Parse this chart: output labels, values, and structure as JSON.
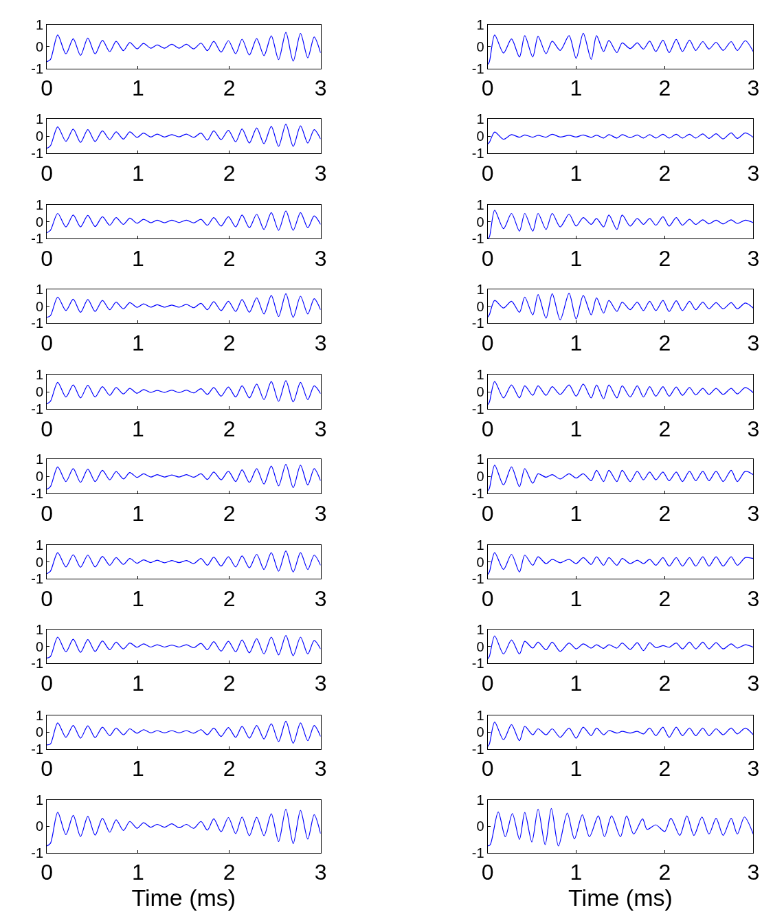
{
  "chart_data": [
    {
      "type": "line",
      "color": "#0000ff",
      "xlim": [
        0,
        3
      ],
      "ylim": [
        -1,
        1
      ],
      "xticks": [
        0,
        1,
        2,
        3
      ],
      "yticks": [
        -1,
        0,
        1
      ],
      "x": [
        0,
        0.04,
        0.12,
        0.21,
        0.29,
        0.37,
        0.45,
        0.53,
        0.61,
        0.69,
        0.76,
        0.84,
        0.91,
        0.99,
        1.06,
        1.14,
        1.21,
        1.29,
        1.37,
        1.45,
        1.53,
        1.61,
        1.69,
        1.76,
        1.83,
        1.91,
        1.99,
        2.07,
        2.14,
        2.22,
        2.3,
        2.38,
        2.46,
        2.54,
        2.62,
        2.7,
        2.78,
        2.86,
        2.93,
        3.0
      ],
      "values": [
        -0.7,
        -0.6,
        0.52,
        -0.34,
        0.35,
        -0.41,
        0.38,
        -0.34,
        0.28,
        -0.24,
        0.23,
        -0.19,
        0.18,
        -0.11,
        0.14,
        -0.08,
        0.07,
        -0.08,
        0.1,
        -0.08,
        0.1,
        -0.11,
        0.15,
        -0.19,
        0.23,
        -0.26,
        0.26,
        -0.33,
        0.33,
        -0.39,
        0.36,
        -0.42,
        0.48,
        -0.6,
        0.64,
        -0.67,
        0.59,
        -0.52,
        0.43,
        -0.29
      ]
    },
    {
      "type": "line",
      "color": "#0000ff",
      "xlim": [
        0,
        3
      ],
      "ylim": [
        -1,
        1
      ],
      "xticks": [
        0,
        1,
        2,
        3
      ],
      "yticks": [
        -1,
        0,
        1
      ],
      "x": [
        0,
        0.02,
        0.08,
        0.18,
        0.27,
        0.36,
        0.42,
        0.51,
        0.57,
        0.66,
        0.73,
        0.82,
        0.92,
        1.0,
        1.08,
        1.17,
        1.23,
        1.31,
        1.37,
        1.46,
        1.52,
        1.61,
        1.69,
        1.76,
        1.83,
        1.9,
        1.98,
        2.05,
        2.13,
        2.2,
        2.28,
        2.35,
        2.43,
        2.5,
        2.58,
        2.66,
        2.75,
        2.82,
        2.91,
        3.0
      ],
      "values": [
        -0.82,
        -0.7,
        0.52,
        -0.3,
        0.34,
        -0.48,
        0.49,
        -0.48,
        0.46,
        -0.33,
        0.24,
        -0.18,
        0.49,
        -0.54,
        0.6,
        -0.59,
        0.49,
        -0.23,
        0.27,
        -0.28,
        0.16,
        -0.1,
        0.16,
        -0.12,
        0.24,
        -0.23,
        0.29,
        -0.28,
        0.32,
        -0.23,
        0.29,
        -0.18,
        0.22,
        -0.12,
        0.19,
        -0.18,
        0.22,
        -0.18,
        0.26,
        -0.24
      ]
    },
    {
      "type": "line",
      "color": "#0000ff",
      "xlim": [
        0,
        3
      ],
      "ylim": [
        -1,
        1
      ],
      "xticks": [
        0,
        1,
        2,
        3
      ],
      "yticks": [
        -1,
        0,
        1
      ],
      "x": [
        0,
        0.04,
        0.12,
        0.21,
        0.29,
        0.37,
        0.45,
        0.53,
        0.61,
        0.69,
        0.76,
        0.84,
        0.91,
        0.99,
        1.06,
        1.14,
        1.21,
        1.29,
        1.37,
        1.45,
        1.53,
        1.61,
        1.69,
        1.76,
        1.83,
        1.91,
        1.99,
        2.07,
        2.14,
        2.22,
        2.3,
        2.38,
        2.46,
        2.54,
        2.62,
        2.7,
        2.78,
        2.86,
        2.93,
        3.0
      ],
      "values": [
        -0.7,
        -0.55,
        0.55,
        -0.29,
        0.42,
        -0.35,
        0.39,
        -0.3,
        0.32,
        -0.19,
        0.26,
        -0.16,
        0.26,
        -0.06,
        0.19,
        -0.04,
        0.13,
        -0.04,
        0.1,
        -0.03,
        0.13,
        -0.06,
        0.19,
        -0.22,
        0.32,
        -0.19,
        0.35,
        -0.32,
        0.43,
        -0.39,
        0.49,
        -0.43,
        0.58,
        -0.58,
        0.71,
        -0.58,
        0.61,
        -0.39,
        0.39,
        -0.15
      ]
    },
    {
      "type": "line",
      "color": "#0000ff",
      "xlim": [
        0,
        3
      ],
      "ylim": [
        -1,
        1
      ],
      "xticks": [
        0,
        1,
        2,
        3
      ],
      "yticks": [
        -1,
        0,
        1
      ],
      "x": [
        0,
        0.02,
        0.08,
        0.18,
        0.27,
        0.36,
        0.42,
        0.51,
        0.57,
        0.66,
        0.73,
        0.82,
        0.92,
        1.0,
        1.08,
        1.17,
        1.23,
        1.31,
        1.37,
        1.46,
        1.52,
        1.61,
        1.69,
        1.76,
        1.83,
        1.9,
        1.98,
        2.05,
        2.13,
        2.2,
        2.28,
        2.35,
        2.43,
        2.5,
        2.58,
        2.66,
        2.75,
        2.82,
        2.91,
        3.0
      ],
      "values": [
        -0.45,
        -0.35,
        0.25,
        -0.17,
        0.1,
        -0.05,
        0.08,
        -0.05,
        0.06,
        -0.05,
        0.12,
        -0.04,
        0.06,
        -0.04,
        0.08,
        -0.06,
        0.07,
        -0.1,
        0.1,
        -0.1,
        0.1,
        -0.08,
        0.08,
        -0.1,
        0.1,
        -0.1,
        0.12,
        -0.1,
        0.12,
        -0.1,
        0.12,
        -0.1,
        0.14,
        -0.12,
        0.15,
        -0.15,
        0.2,
        -0.12,
        0.2,
        -0.06
      ]
    },
    {
      "type": "line",
      "color": "#0000ff",
      "xlim": [
        0,
        3
      ],
      "ylim": [
        -1,
        1
      ],
      "xticks": [
        0,
        1,
        2,
        3
      ],
      "yticks": [
        -1,
        0,
        1
      ],
      "x": [
        0,
        0.04,
        0.12,
        0.21,
        0.29,
        0.37,
        0.45,
        0.53,
        0.61,
        0.69,
        0.76,
        0.84,
        0.91,
        0.99,
        1.06,
        1.14,
        1.21,
        1.29,
        1.37,
        1.45,
        1.53,
        1.61,
        1.69,
        1.76,
        1.83,
        1.91,
        1.99,
        2.07,
        2.14,
        2.22,
        2.3,
        2.38,
        2.46,
        2.54,
        2.62,
        2.7,
        2.78,
        2.86,
        2.93,
        3.0
      ],
      "values": [
        -0.65,
        -0.5,
        0.5,
        -0.3,
        0.4,
        -0.3,
        0.38,
        -0.28,
        0.3,
        -0.2,
        0.25,
        -0.15,
        0.22,
        -0.08,
        0.15,
        -0.05,
        0.1,
        -0.05,
        0.1,
        -0.04,
        0.1,
        -0.06,
        0.15,
        -0.2,
        0.25,
        -0.25,
        0.3,
        -0.3,
        0.4,
        -0.35,
        0.45,
        -0.45,
        0.55,
        -0.5,
        0.65,
        -0.5,
        0.55,
        -0.35,
        0.35,
        -0.15
      ]
    },
    {
      "type": "line",
      "color": "#0000ff",
      "xlim": [
        0,
        3
      ],
      "ylim": [
        -1,
        1
      ],
      "xticks": [
        0,
        1,
        2,
        3
      ],
      "yticks": [
        -1,
        0,
        1
      ],
      "x": [
        0,
        0.02,
        0.08,
        0.18,
        0.27,
        0.36,
        0.42,
        0.51,
        0.57,
        0.66,
        0.73,
        0.82,
        0.92,
        1.0,
        1.08,
        1.17,
        1.23,
        1.31,
        1.37,
        1.46,
        1.52,
        1.61,
        1.69,
        1.76,
        1.83,
        1.9,
        1.98,
        2.05,
        2.13,
        2.2,
        2.28,
        2.35,
        2.43,
        2.5,
        2.58,
        2.66,
        2.75,
        2.82,
        2.91,
        3.0
      ],
      "values": [
        -1.0,
        -0.9,
        0.69,
        -0.4,
        0.5,
        -0.55,
        0.5,
        -0.55,
        0.5,
        -0.45,
        0.5,
        -0.3,
        0.45,
        -0.25,
        0.25,
        -0.15,
        0.2,
        -0.3,
        0.4,
        -0.45,
        0.4,
        -0.25,
        0.2,
        -0.15,
        0.2,
        -0.2,
        0.3,
        -0.25,
        0.25,
        -0.2,
        0.15,
        -0.15,
        0.12,
        -0.12,
        0.1,
        -0.12,
        0.12,
        -0.1,
        0.1,
        -0.05
      ]
    },
    {
      "type": "line",
      "color": "#0000ff",
      "xlim": [
        0,
        3
      ],
      "ylim": [
        -1,
        1
      ],
      "xticks": [
        0,
        1,
        2,
        3
      ],
      "yticks": [
        -1,
        0,
        1
      ],
      "x": [
        0,
        0.04,
        0.12,
        0.21,
        0.29,
        0.37,
        0.45,
        0.53,
        0.61,
        0.69,
        0.76,
        0.84,
        0.91,
        0.99,
        1.06,
        1.14,
        1.21,
        1.29,
        1.37,
        1.45,
        1.53,
        1.61,
        1.69,
        1.76,
        1.83,
        1.91,
        1.99,
        2.07,
        2.14,
        2.22,
        2.3,
        2.38,
        2.46,
        2.54,
        2.62,
        2.7,
        2.78,
        2.86,
        2.93,
        3.0
      ],
      "values": [
        -0.65,
        -0.55,
        0.55,
        -0.25,
        0.42,
        -0.35,
        0.4,
        -0.3,
        0.35,
        -0.2,
        0.25,
        -0.15,
        0.22,
        -0.06,
        0.15,
        -0.05,
        0.1,
        -0.05,
        0.08,
        -0.05,
        0.12,
        -0.08,
        0.18,
        -0.2,
        0.28,
        -0.25,
        0.3,
        -0.3,
        0.4,
        -0.35,
        0.5,
        -0.45,
        0.65,
        -0.6,
        0.75,
        -0.65,
        0.6,
        -0.45,
        0.45,
        -0.2
      ]
    },
    {
      "type": "line",
      "color": "#0000ff",
      "xlim": [
        0,
        3
      ],
      "ylim": [
        -1,
        1
      ],
      "xticks": [
        0,
        1,
        2,
        3
      ],
      "yticks": [
        -1,
        0,
        1
      ],
      "x": [
        0,
        0.02,
        0.08,
        0.18,
        0.27,
        0.36,
        0.42,
        0.51,
        0.57,
        0.66,
        0.73,
        0.82,
        0.92,
        1.0,
        1.08,
        1.17,
        1.23,
        1.31,
        1.37,
        1.46,
        1.52,
        1.61,
        1.69,
        1.76,
        1.83,
        1.9,
        1.98,
        2.05,
        2.13,
        2.2,
        2.28,
        2.35,
        2.43,
        2.5,
        2.58,
        2.66,
        2.75,
        2.82,
        2.91,
        3.0
      ],
      "values": [
        -0.65,
        -0.5,
        0.35,
        -0.1,
        0.3,
        -0.35,
        0.55,
        -0.5,
        0.7,
        -0.7,
        0.75,
        -0.8,
        0.78,
        -0.75,
        0.65,
        -0.5,
        0.5,
        -0.4,
        0.35,
        -0.3,
        0.25,
        -0.2,
        0.25,
        -0.25,
        0.3,
        -0.25,
        0.35,
        -0.3,
        0.33,
        -0.25,
        0.3,
        -0.2,
        0.25,
        -0.15,
        0.22,
        -0.15,
        0.22,
        -0.15,
        0.2,
        -0.1
      ]
    },
    {
      "type": "line",
      "color": "#0000ff",
      "xlim": [
        0,
        3
      ],
      "ylim": [
        -1,
        1
      ],
      "xticks": [
        0,
        1,
        2,
        3
      ],
      "yticks": [
        -1,
        0,
        1
      ],
      "x": [
        0,
        0.04,
        0.12,
        0.21,
        0.29,
        0.37,
        0.45,
        0.53,
        0.61,
        0.69,
        0.76,
        0.84,
        0.91,
        0.99,
        1.06,
        1.14,
        1.21,
        1.29,
        1.37,
        1.45,
        1.53,
        1.61,
        1.69,
        1.76,
        1.83,
        1.91,
        1.99,
        2.07,
        2.14,
        2.22,
        2.3,
        2.38,
        2.46,
        2.54,
        2.62,
        2.7,
        2.78,
        2.86,
        2.93,
        3.0
      ],
      "values": [
        -0.7,
        -0.55,
        0.55,
        -0.3,
        0.4,
        -0.35,
        0.38,
        -0.3,
        0.3,
        -0.2,
        0.25,
        -0.12,
        0.2,
        -0.08,
        0.13,
        -0.03,
        0.08,
        -0.03,
        0.1,
        -0.04,
        0.1,
        -0.06,
        0.18,
        -0.15,
        0.25,
        -0.25,
        0.28,
        -0.3,
        0.35,
        -0.35,
        0.45,
        -0.45,
        0.6,
        -0.55,
        0.65,
        -0.58,
        0.55,
        -0.45,
        0.35,
        -0.1
      ]
    },
    {
      "type": "line",
      "color": "#0000ff",
      "xlim": [
        0,
        3
      ],
      "ylim": [
        -1,
        1
      ],
      "xticks": [
        0,
        1,
        2,
        3
      ],
      "yticks": [
        -1,
        0,
        1
      ],
      "x": [
        0,
        0.02,
        0.08,
        0.18,
        0.27,
        0.36,
        0.42,
        0.51,
        0.57,
        0.66,
        0.73,
        0.82,
        0.92,
        1.0,
        1.08,
        1.17,
        1.23,
        1.31,
        1.37,
        1.46,
        1.52,
        1.61,
        1.69,
        1.76,
        1.83,
        1.9,
        1.98,
        2.05,
        2.13,
        2.2,
        2.28,
        2.35,
        2.43,
        2.5,
        2.58,
        2.66,
        2.75,
        2.82,
        2.91,
        3.0
      ],
      "values": [
        -0.75,
        -0.6,
        0.6,
        -0.35,
        0.4,
        -0.35,
        0.35,
        -0.2,
        0.35,
        -0.2,
        0.3,
        -0.15,
        0.4,
        -0.25,
        0.45,
        -0.35,
        0.4,
        -0.4,
        0.4,
        -0.35,
        0.35,
        -0.3,
        0.35,
        -0.3,
        0.3,
        -0.25,
        0.3,
        -0.25,
        0.28,
        -0.2,
        0.25,
        -0.18,
        0.2,
        -0.15,
        0.2,
        -0.15,
        0.2,
        -0.12,
        0.25,
        -0.05
      ]
    },
    {
      "type": "line",
      "color": "#0000ff",
      "xlim": [
        0,
        3
      ],
      "ylim": [
        -1,
        1
      ],
      "xticks": [
        0,
        1,
        2,
        3
      ],
      "yticks": [
        -1,
        0,
        1
      ],
      "x": [
        0,
        0.04,
        0.12,
        0.21,
        0.29,
        0.37,
        0.45,
        0.53,
        0.61,
        0.69,
        0.76,
        0.84,
        0.91,
        0.99,
        1.06,
        1.14,
        1.21,
        1.29,
        1.37,
        1.45,
        1.53,
        1.61,
        1.69,
        1.76,
        1.83,
        1.91,
        1.99,
        2.07,
        2.14,
        2.22,
        2.3,
        2.38,
        2.46,
        2.54,
        2.62,
        2.7,
        2.78,
        2.86,
        2.93,
        3.0
      ],
      "values": [
        -0.75,
        -0.6,
        0.55,
        -0.3,
        0.45,
        -0.35,
        0.42,
        -0.3,
        0.35,
        -0.2,
        0.28,
        -0.15,
        0.22,
        -0.06,
        0.15,
        -0.04,
        0.1,
        -0.04,
        0.08,
        -0.04,
        0.1,
        -0.05,
        0.15,
        -0.18,
        0.25,
        -0.2,
        0.3,
        -0.3,
        0.38,
        -0.35,
        0.45,
        -0.45,
        0.6,
        -0.55,
        0.7,
        -0.65,
        0.65,
        -0.5,
        0.45,
        -0.25
      ]
    },
    {
      "type": "line",
      "color": "#0000ff",
      "xlim": [
        0,
        3
      ],
      "ylim": [
        -1,
        1
      ],
      "xticks": [
        0,
        1,
        2,
        3
      ],
      "yticks": [
        -1,
        0,
        1
      ],
      "x": [
        0,
        0.02,
        0.08,
        0.18,
        0.27,
        0.36,
        0.42,
        0.51,
        0.57,
        0.66,
        0.73,
        0.82,
        0.92,
        1.0,
        1.08,
        1.17,
        1.23,
        1.31,
        1.37,
        1.46,
        1.52,
        1.61,
        1.69,
        1.76,
        1.83,
        1.9,
        1.98,
        2.05,
        2.13,
        2.2,
        2.28,
        2.35,
        2.43,
        2.5,
        2.58,
        2.66,
        2.75,
        2.82,
        2.91,
        3.0
      ],
      "values": [
        -0.85,
        -0.7,
        0.65,
        -0.5,
        0.55,
        -0.6,
        0.45,
        -0.4,
        0.15,
        -0.05,
        0.1,
        -0.15,
        0.15,
        -0.1,
        0.15,
        -0.25,
        0.35,
        -0.3,
        0.35,
        -0.3,
        0.35,
        -0.3,
        0.3,
        -0.2,
        0.25,
        -0.2,
        0.25,
        -0.25,
        0.25,
        -0.3,
        0.3,
        -0.25,
        0.3,
        -0.25,
        0.3,
        -0.3,
        0.35,
        -0.3,
        0.3,
        0.1
      ]
    },
    {
      "type": "line",
      "color": "#0000ff",
      "xlim": [
        0,
        3
      ],
      "ylim": [
        -1,
        1
      ],
      "xticks": [
        0,
        1,
        2,
        3
      ],
      "yticks": [
        -1,
        0,
        1
      ],
      "x": [
        0,
        0.04,
        0.12,
        0.21,
        0.29,
        0.37,
        0.45,
        0.53,
        0.61,
        0.69,
        0.76,
        0.84,
        0.91,
        0.99,
        1.06,
        1.14,
        1.21,
        1.29,
        1.37,
        1.45,
        1.53,
        1.61,
        1.69,
        1.76,
        1.83,
        1.91,
        1.99,
        2.07,
        2.14,
        2.22,
        2.3,
        2.38,
        2.46,
        2.54,
        2.62,
        2.7,
        2.78,
        2.86,
        2.93,
        3.0
      ],
      "values": [
        -0.7,
        -0.55,
        0.55,
        -0.3,
        0.42,
        -0.32,
        0.4,
        -0.3,
        0.32,
        -0.2,
        0.25,
        -0.15,
        0.2,
        -0.08,
        0.12,
        -0.04,
        0.1,
        -0.05,
        0.08,
        -0.04,
        0.08,
        -0.1,
        0.2,
        -0.2,
        0.28,
        -0.25,
        0.3,
        -0.3,
        0.35,
        -0.35,
        0.45,
        -0.45,
        0.55,
        -0.55,
        0.65,
        -0.6,
        0.55,
        -0.45,
        0.4,
        -0.2
      ]
    },
    {
      "type": "line",
      "color": "#0000ff",
      "xlim": [
        0,
        3
      ],
      "ylim": [
        -1,
        1
      ],
      "xticks": [
        0,
        1,
        2,
        3
      ],
      "yticks": [
        -1,
        0,
        1
      ],
      "x": [
        0,
        0.02,
        0.08,
        0.18,
        0.27,
        0.36,
        0.42,
        0.51,
        0.57,
        0.66,
        0.73,
        0.82,
        0.92,
        1.0,
        1.08,
        1.17,
        1.23,
        1.31,
        1.37,
        1.46,
        1.52,
        1.61,
        1.69,
        1.76,
        1.83,
        1.9,
        1.98,
        2.05,
        2.13,
        2.2,
        2.28,
        2.35,
        2.43,
        2.5,
        2.58,
        2.66,
        2.75,
        2.82,
        2.91,
        3.0
      ],
      "values": [
        -0.75,
        -0.6,
        0.55,
        -0.45,
        0.45,
        -0.6,
        0.4,
        -0.2,
        0.3,
        -0.1,
        0.15,
        -0.05,
        0.15,
        -0.1,
        0.25,
        -0.15,
        0.3,
        -0.2,
        0.25,
        -0.2,
        0.2,
        -0.1,
        0.1,
        -0.1,
        0.15,
        -0.2,
        0.25,
        -0.25,
        0.25,
        -0.25,
        0.25,
        -0.25,
        0.3,
        -0.25,
        0.3,
        -0.25,
        0.3,
        -0.2,
        0.25,
        0.2
      ]
    },
    {
      "type": "line",
      "color": "#0000ff",
      "xlim": [
        0,
        3
      ],
      "ylim": [
        -1,
        1
      ],
      "xticks": [
        0,
        1,
        2,
        3
      ],
      "yticks": [
        -1,
        0,
        1
      ],
      "x": [
        0,
        0.04,
        0.12,
        0.21,
        0.29,
        0.37,
        0.45,
        0.53,
        0.61,
        0.69,
        0.76,
        0.84,
        0.91,
        0.99,
        1.06,
        1.14,
        1.21,
        1.29,
        1.37,
        1.45,
        1.53,
        1.61,
        1.69,
        1.76,
        1.83,
        1.91,
        1.99,
        2.07,
        2.14,
        2.22,
        2.3,
        2.38,
        2.46,
        2.54,
        2.62,
        2.7,
        2.78,
        2.86,
        2.93,
        3.0
      ],
      "values": [
        -0.7,
        -0.6,
        0.55,
        -0.32,
        0.42,
        -0.35,
        0.4,
        -0.3,
        0.32,
        -0.2,
        0.25,
        -0.15,
        0.2,
        -0.05,
        0.15,
        -0.04,
        0.1,
        -0.04,
        0.08,
        -0.04,
        0.1,
        -0.08,
        0.18,
        -0.2,
        0.28,
        -0.28,
        0.3,
        -0.32,
        0.38,
        -0.38,
        0.45,
        -0.45,
        0.55,
        -0.5,
        0.65,
        -0.55,
        0.55,
        -0.45,
        0.35,
        -0.15
      ]
    },
    {
      "type": "line",
      "color": "#0000ff",
      "xlim": [
        0,
        3
      ],
      "ylim": [
        -1,
        1
      ],
      "xticks": [
        0,
        1,
        2,
        3
      ],
      "yticks": [
        -1,
        0,
        1
      ],
      "x": [
        0,
        0.02,
        0.08,
        0.18,
        0.27,
        0.36,
        0.42,
        0.51,
        0.57,
        0.66,
        0.73,
        0.82,
        0.92,
        1.0,
        1.08,
        1.17,
        1.23,
        1.31,
        1.37,
        1.46,
        1.52,
        1.61,
        1.69,
        1.76,
        1.83,
        1.9,
        1.98,
        2.05,
        2.13,
        2.2,
        2.28,
        2.35,
        2.43,
        2.5,
        2.58,
        2.66,
        2.75,
        2.82,
        2.91,
        3.0
      ],
      "values": [
        -0.75,
        -0.6,
        0.62,
        -0.45,
        0.38,
        -0.45,
        0.3,
        -0.1,
        0.25,
        -0.2,
        0.25,
        -0.3,
        0.2,
        -0.15,
        0.15,
        -0.1,
        0.1,
        -0.12,
        0.1,
        -0.1,
        0.2,
        -0.18,
        0.22,
        -0.25,
        0.22,
        -0.08,
        0.05,
        -0.05,
        0.2,
        -0.15,
        0.25,
        -0.15,
        0.25,
        -0.15,
        0.22,
        -0.15,
        0.15,
        -0.1,
        0.1,
        -0.05
      ]
    },
    {
      "type": "line",
      "color": "#0000ff",
      "xlim": [
        0,
        3
      ],
      "ylim": [
        -1,
        1
      ],
      "xticks": [
        0,
        1,
        2,
        3
      ],
      "yticks": [
        -1,
        0,
        1
      ],
      "x": [
        0,
        0.04,
        0.12,
        0.21,
        0.29,
        0.37,
        0.45,
        0.53,
        0.61,
        0.69,
        0.76,
        0.84,
        0.91,
        0.99,
        1.06,
        1.14,
        1.21,
        1.29,
        1.37,
        1.45,
        1.53,
        1.61,
        1.69,
        1.76,
        1.83,
        1.91,
        1.99,
        2.07,
        2.14,
        2.22,
        2.3,
        2.38,
        2.46,
        2.54,
        2.62,
        2.7,
        2.78,
        2.86,
        2.93,
        3.0
      ],
      "values": [
        -0.75,
        -0.7,
        0.55,
        -0.3,
        0.4,
        -0.35,
        0.38,
        -0.32,
        0.3,
        -0.2,
        0.25,
        -0.15,
        0.2,
        -0.06,
        0.15,
        -0.04,
        0.1,
        -0.04,
        0.1,
        -0.04,
        0.1,
        -0.06,
        0.15,
        -0.15,
        0.25,
        -0.25,
        0.28,
        -0.3,
        0.35,
        -0.35,
        0.4,
        -0.4,
        0.5,
        -0.55,
        0.65,
        -0.65,
        0.55,
        -0.5,
        0.4,
        -0.25
      ]
    },
    {
      "type": "line",
      "color": "#0000ff",
      "xlim": [
        0,
        3
      ],
      "ylim": [
        -1,
        1
      ],
      "xticks": [
        0,
        1,
        2,
        3
      ],
      "yticks": [
        -1,
        0,
        1
      ],
      "x": [
        0,
        0.02,
        0.08,
        0.18,
        0.27,
        0.36,
        0.42,
        0.51,
        0.57,
        0.66,
        0.73,
        0.82,
        0.92,
        1.0,
        1.08,
        1.17,
        1.23,
        1.31,
        1.37,
        1.46,
        1.52,
        1.61,
        1.69,
        1.76,
        1.83,
        1.9,
        1.98,
        2.05,
        2.13,
        2.2,
        2.28,
        2.35,
        2.43,
        2.5,
        2.58,
        2.66,
        2.75,
        2.82,
        2.91,
        3.0
      ],
      "values": [
        -0.85,
        -0.7,
        0.6,
        -0.45,
        0.45,
        -0.5,
        0.35,
        -0.15,
        0.2,
        -0.15,
        0.2,
        -0.3,
        0.25,
        -0.35,
        0.3,
        -0.2,
        0.25,
        -0.15,
        0.1,
        -0.05,
        0.05,
        -0.05,
        0.05,
        -0.1,
        0.25,
        -0.2,
        0.3,
        -0.3,
        0.3,
        -0.2,
        0.25,
        -0.2,
        0.25,
        -0.2,
        0.2,
        -0.15,
        0.25,
        -0.1,
        0.25,
        -0.15
      ]
    },
    {
      "type": "line",
      "color": "#0000ff",
      "xlim": [
        0,
        3
      ],
      "ylim": [
        -1,
        1
      ],
      "xticks": [
        0,
        1,
        2,
        3
      ],
      "yticks": [
        -1,
        0,
        1
      ],
      "xlabel": "Time (ms)",
      "x": [
        0,
        0.04,
        0.12,
        0.21,
        0.29,
        0.37,
        0.45,
        0.53,
        0.61,
        0.69,
        0.76,
        0.84,
        0.91,
        0.99,
        1.06,
        1.14,
        1.21,
        1.29,
        1.37,
        1.45,
        1.53,
        1.61,
        1.69,
        1.76,
        1.83,
        1.91,
        1.99,
        2.07,
        2.14,
        2.22,
        2.3,
        2.38,
        2.46,
        2.54,
        2.62,
        2.7,
        2.78,
        2.86,
        2.93,
        3.0
      ],
      "values": [
        -0.75,
        -0.65,
        0.53,
        -0.32,
        0.41,
        -0.39,
        0.37,
        -0.34,
        0.3,
        -0.23,
        0.24,
        -0.16,
        0.18,
        -0.08,
        0.13,
        -0.04,
        0.07,
        -0.04,
        0.09,
        -0.06,
        0.07,
        -0.08,
        0.18,
        -0.15,
        0.28,
        -0.21,
        0.33,
        -0.28,
        0.35,
        -0.36,
        0.34,
        -0.36,
        0.47,
        -0.58,
        0.65,
        -0.66,
        0.6,
        -0.49,
        0.44,
        -0.28
      ]
    },
    {
      "type": "line",
      "color": "#0000ff",
      "xlim": [
        0,
        3
      ],
      "ylim": [
        -1,
        1
      ],
      "xticks": [
        0,
        1,
        2,
        3
      ],
      "yticks": [
        -1,
        0,
        1
      ],
      "xlabel": "Time (ms)",
      "x": [
        0,
        0.03,
        0.12,
        0.2,
        0.28,
        0.36,
        0.42,
        0.5,
        0.57,
        0.65,
        0.72,
        0.8,
        0.9,
        0.98,
        1.07,
        1.15,
        1.25,
        1.32,
        1.4,
        1.5,
        1.57,
        1.65,
        1.75,
        1.8,
        1.9,
        2.0,
        2.07,
        2.17,
        2.25,
        2.33,
        2.42,
        2.5,
        2.58,
        2.66,
        2.75,
        2.82,
        2.9,
        3.0
      ],
      "values": [
        -0.75,
        -0.7,
        0.54,
        -0.4,
        0.48,
        -0.5,
        0.52,
        -0.6,
        0.65,
        -0.7,
        0.67,
        -0.75,
        0.5,
        -0.48,
        0.43,
        -0.4,
        0.39,
        -0.4,
        0.39,
        -0.4,
        0.39,
        -0.3,
        0.28,
        -0.12,
        0.05,
        -0.2,
        0.3,
        -0.35,
        0.39,
        -0.35,
        0.35,
        -0.3,
        0.3,
        -0.35,
        0.3,
        -0.3,
        0.35,
        -0.3
      ]
    }
  ]
}
